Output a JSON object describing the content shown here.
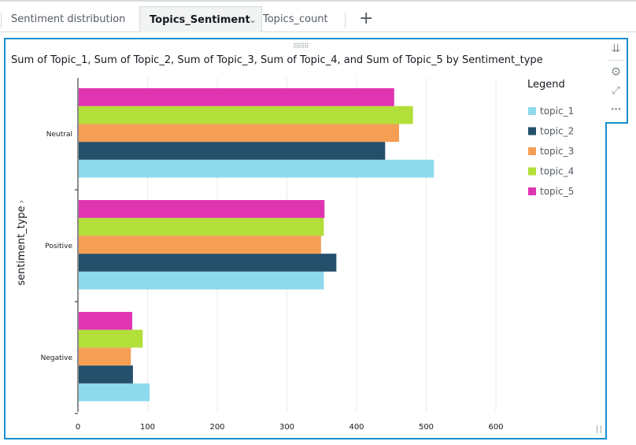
{
  "tabs": [
    {
      "label": "Sentiment distribution"
    },
    {
      "label": "Topics_Sentiment",
      "active": true
    },
    {
      "label": "Topics_count"
    }
  ],
  "add_tab_icon": "plus-icon",
  "visual": {
    "title": "Sum of Topic_1, Sum of Topic_2, Sum of Topic_3, Sum of Topic_4, and Sum of Topic_5 by Sentiment_type",
    "toolbar_icons": [
      "collapse-icon",
      "gear-icon",
      "expand-icon",
      "more-icon"
    ]
  },
  "chart_data": {
    "type": "bar",
    "orientation": "horizontal",
    "title": "Sum of Topic_1, Sum of Topic_2, Sum of Topic_3, Sum of Topic_4, and Sum of Topic_5 by Sentiment_type",
    "ylabel": "sentiment_type",
    "xlabel": "",
    "categories": [
      "Neutral",
      "Positive",
      "Negative"
    ],
    "xlim": [
      0,
      600
    ],
    "xticks": [
      "0",
      "100",
      "200",
      "300",
      "400",
      "500",
      "600"
    ],
    "grid": true,
    "legend_title": "Legend",
    "legend_position": "right",
    "series": [
      {
        "name": "topic_1",
        "color": "#8fd9ec",
        "values": [
          511,
          353,
          103
        ]
      },
      {
        "name": "topic_2",
        "color": "#24506b",
        "values": [
          441,
          371,
          79
        ]
      },
      {
        "name": "topic_3",
        "color": "#f59f54",
        "values": [
          461,
          349,
          76
        ]
      },
      {
        "name": "topic_4",
        "color": "#b2df3a",
        "values": [
          481,
          353,
          93
        ]
      },
      {
        "name": "topic_5",
        "color": "#e035b1",
        "values": [
          454,
          354,
          78
        ]
      }
    ]
  }
}
